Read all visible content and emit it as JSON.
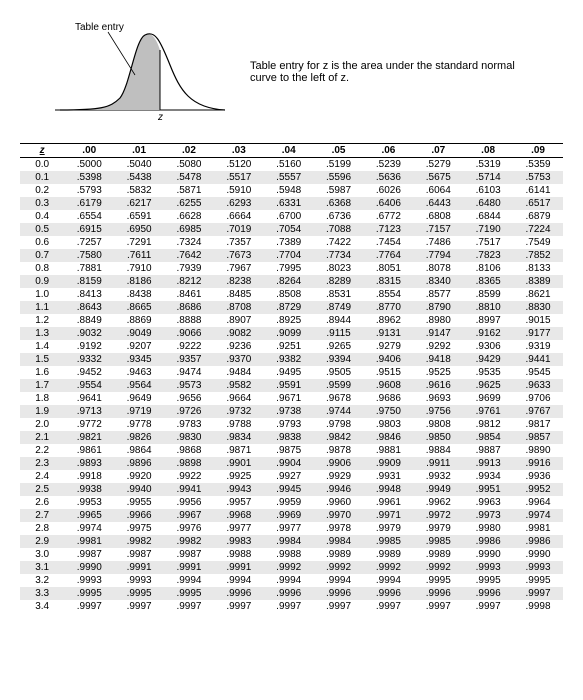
{
  "diagram": {
    "label": "Table entry",
    "caption": "Table entry for z is the area under the standard normal curve to the left of z."
  },
  "table": {
    "zheader": "z",
    "cols": [
      ".00",
      ".01",
      ".02",
      ".03",
      ".04",
      ".05",
      ".06",
      ".07",
      ".08",
      ".09"
    ],
    "rows": [
      {
        "z": "0.0",
        "v": [
          ".5000",
          ".5040",
          ".5080",
          ".5120",
          ".5160",
          ".5199",
          ".5239",
          ".5279",
          ".5319",
          ".5359"
        ]
      },
      {
        "z": "0.1",
        "v": [
          ".5398",
          ".5438",
          ".5478",
          ".5517",
          ".5557",
          ".5596",
          ".5636",
          ".5675",
          ".5714",
          ".5753"
        ]
      },
      {
        "z": "0.2",
        "v": [
          ".5793",
          ".5832",
          ".5871",
          ".5910",
          ".5948",
          ".5987",
          ".6026",
          ".6064",
          ".6103",
          ".6141"
        ]
      },
      {
        "z": "0.3",
        "v": [
          ".6179",
          ".6217",
          ".6255",
          ".6293",
          ".6331",
          ".6368",
          ".6406",
          ".6443",
          ".6480",
          ".6517"
        ]
      },
      {
        "z": "0.4",
        "v": [
          ".6554",
          ".6591",
          ".6628",
          ".6664",
          ".6700",
          ".6736",
          ".6772",
          ".6808",
          ".6844",
          ".6879"
        ]
      },
      {
        "z": "0.5",
        "v": [
          ".6915",
          ".6950",
          ".6985",
          ".7019",
          ".7054",
          ".7088",
          ".7123",
          ".7157",
          ".7190",
          ".7224"
        ]
      },
      {
        "z": "0.6",
        "v": [
          ".7257",
          ".7291",
          ".7324",
          ".7357",
          ".7389",
          ".7422",
          ".7454",
          ".7486",
          ".7517",
          ".7549"
        ]
      },
      {
        "z": "0.7",
        "v": [
          ".7580",
          ".7611",
          ".7642",
          ".7673",
          ".7704",
          ".7734",
          ".7764",
          ".7794",
          ".7823",
          ".7852"
        ]
      },
      {
        "z": "0.8",
        "v": [
          ".7881",
          ".7910",
          ".7939",
          ".7967",
          ".7995",
          ".8023",
          ".8051",
          ".8078",
          ".8106",
          ".8133"
        ]
      },
      {
        "z": "0.9",
        "v": [
          ".8159",
          ".8186",
          ".8212",
          ".8238",
          ".8264",
          ".8289",
          ".8315",
          ".8340",
          ".8365",
          ".8389"
        ]
      },
      {
        "z": "1.0",
        "v": [
          ".8413",
          ".8438",
          ".8461",
          ".8485",
          ".8508",
          ".8531",
          ".8554",
          ".8577",
          ".8599",
          ".8621"
        ]
      },
      {
        "z": "1.1",
        "v": [
          ".8643",
          ".8665",
          ".8686",
          ".8708",
          ".8729",
          ".8749",
          ".8770",
          ".8790",
          ".8810",
          ".8830"
        ]
      },
      {
        "z": "1.2",
        "v": [
          ".8849",
          ".8869",
          ".8888",
          ".8907",
          ".8925",
          ".8944",
          ".8962",
          ".8980",
          ".8997",
          ".9015"
        ]
      },
      {
        "z": "1.3",
        "v": [
          ".9032",
          ".9049",
          ".9066",
          ".9082",
          ".9099",
          ".9115",
          ".9131",
          ".9147",
          ".9162",
          ".9177"
        ]
      },
      {
        "z": "1.4",
        "v": [
          ".9192",
          ".9207",
          ".9222",
          ".9236",
          ".9251",
          ".9265",
          ".9279",
          ".9292",
          ".9306",
          ".9319"
        ]
      },
      {
        "z": "1.5",
        "v": [
          ".9332",
          ".9345",
          ".9357",
          ".9370",
          ".9382",
          ".9394",
          ".9406",
          ".9418",
          ".9429",
          ".9441"
        ]
      },
      {
        "z": "1.6",
        "v": [
          ".9452",
          ".9463",
          ".9474",
          ".9484",
          ".9495",
          ".9505",
          ".9515",
          ".9525",
          ".9535",
          ".9545"
        ]
      },
      {
        "z": "1.7",
        "v": [
          ".9554",
          ".9564",
          ".9573",
          ".9582",
          ".9591",
          ".9599",
          ".9608",
          ".9616",
          ".9625",
          ".9633"
        ]
      },
      {
        "z": "1.8",
        "v": [
          ".9641",
          ".9649",
          ".9656",
          ".9664",
          ".9671",
          ".9678",
          ".9686",
          ".9693",
          ".9699",
          ".9706"
        ]
      },
      {
        "z": "1.9",
        "v": [
          ".9713",
          ".9719",
          ".9726",
          ".9732",
          ".9738",
          ".9744",
          ".9750",
          ".9756",
          ".9761",
          ".9767"
        ]
      },
      {
        "z": "2.0",
        "v": [
          ".9772",
          ".9778",
          ".9783",
          ".9788",
          ".9793",
          ".9798",
          ".9803",
          ".9808",
          ".9812",
          ".9817"
        ]
      },
      {
        "z": "2.1",
        "v": [
          ".9821",
          ".9826",
          ".9830",
          ".9834",
          ".9838",
          ".9842",
          ".9846",
          ".9850",
          ".9854",
          ".9857"
        ]
      },
      {
        "z": "2.2",
        "v": [
          ".9861",
          ".9864",
          ".9868",
          ".9871",
          ".9875",
          ".9878",
          ".9881",
          ".9884",
          ".9887",
          ".9890"
        ]
      },
      {
        "z": "2.3",
        "v": [
          ".9893",
          ".9896",
          ".9898",
          ".9901",
          ".9904",
          ".9906",
          ".9909",
          ".9911",
          ".9913",
          ".9916"
        ]
      },
      {
        "z": "2.4",
        "v": [
          ".9918",
          ".9920",
          ".9922",
          ".9925",
          ".9927",
          ".9929",
          ".9931",
          ".9932",
          ".9934",
          ".9936"
        ]
      },
      {
        "z": "2.5",
        "v": [
          ".9938",
          ".9940",
          ".9941",
          ".9943",
          ".9945",
          ".9946",
          ".9948",
          ".9949",
          ".9951",
          ".9952"
        ]
      },
      {
        "z": "2.6",
        "v": [
          ".9953",
          ".9955",
          ".9956",
          ".9957",
          ".9959",
          ".9960",
          ".9961",
          ".9962",
          ".9963",
          ".9964"
        ]
      },
      {
        "z": "2.7",
        "v": [
          ".9965",
          ".9966",
          ".9967",
          ".9968",
          ".9969",
          ".9970",
          ".9971",
          ".9972",
          ".9973",
          ".9974"
        ]
      },
      {
        "z": "2.8",
        "v": [
          ".9974",
          ".9975",
          ".9976",
          ".9977",
          ".9977",
          ".9978",
          ".9979",
          ".9979",
          ".9980",
          ".9981"
        ]
      },
      {
        "z": "2.9",
        "v": [
          ".9981",
          ".9982",
          ".9982",
          ".9983",
          ".9984",
          ".9984",
          ".9985",
          ".9985",
          ".9986",
          ".9986"
        ]
      },
      {
        "z": "3.0",
        "v": [
          ".9987",
          ".9987",
          ".9987",
          ".9988",
          ".9988",
          ".9989",
          ".9989",
          ".9989",
          ".9990",
          ".9990"
        ]
      },
      {
        "z": "3.1",
        "v": [
          ".9990",
          ".9991",
          ".9991",
          ".9991",
          ".9992",
          ".9992",
          ".9992",
          ".9992",
          ".9993",
          ".9993"
        ]
      },
      {
        "z": "3.2",
        "v": [
          ".9993",
          ".9993",
          ".9994",
          ".9994",
          ".9994",
          ".9994",
          ".9994",
          ".9995",
          ".9995",
          ".9995"
        ]
      },
      {
        "z": "3.3",
        "v": [
          ".9995",
          ".9995",
          ".9995",
          ".9996",
          ".9996",
          ".9996",
          ".9996",
          ".9996",
          ".9996",
          ".9997"
        ]
      },
      {
        "z": "3.4",
        "v": [
          ".9997",
          ".9997",
          ".9997",
          ".9997",
          ".9997",
          ".9997",
          ".9997",
          ".9997",
          ".9997",
          ".9998"
        ]
      }
    ],
    "shaded_rows": [
      1,
      3,
      5,
      7,
      9,
      11,
      13,
      15,
      17,
      19,
      21,
      23,
      25,
      27,
      29,
      31,
      33
    ]
  },
  "style": {
    "shade_color": "#e8e8e8",
    "curve_fill": "#bfbfbf",
    "curve_stroke": "#000"
  }
}
